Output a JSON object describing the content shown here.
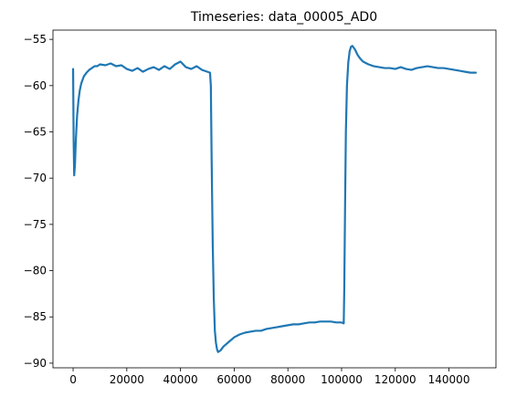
{
  "chart_data": {
    "type": "line",
    "title": "Timeseries: data_00005_AD0",
    "xlabel": "",
    "ylabel": "",
    "xlim": [
      -7500,
      157500
    ],
    "ylim": [
      -90.5,
      -54.0
    ],
    "x_ticks": [
      0,
      20000,
      40000,
      60000,
      80000,
      100000,
      120000,
      140000
    ],
    "x_tick_labels": [
      "0",
      "20000",
      "40000",
      "60000",
      "80000",
      "100000",
      "120000",
      "140000"
    ],
    "y_ticks": [
      -55,
      -60,
      -65,
      -70,
      -75,
      -80,
      -85,
      -90
    ],
    "y_tick_labels": [
      "−55",
      "−60",
      "−65",
      "−70",
      "−75",
      "−80",
      "−85",
      "−90"
    ],
    "grid": false,
    "line_color": "#1f77b4",
    "series": [
      {
        "x": [
          0,
          200,
          400,
          700,
          1000,
          1500,
          2000,
          2500,
          3000,
          4000,
          5000,
          6000,
          7000,
          8000,
          9000,
          10000,
          12000,
          14000,
          16000,
          18000,
          20000,
          22000,
          24000,
          26000,
          28000,
          30000,
          32000,
          34000,
          36000,
          38000,
          40000,
          42000,
          44000,
          46000,
          48000,
          50000,
          51000,
          51300,
          51600,
          52000,
          52400,
          52800,
          53200,
          53600,
          54000,
          55000,
          56000,
          58000,
          60000,
          62000,
          64000,
          66000,
          68000,
          70000,
          72000,
          74000,
          76000,
          78000,
          80000,
          82000,
          84000,
          86000,
          88000,
          90000,
          92000,
          94000,
          96000,
          98000,
          100000,
          100800,
          101000,
          101300,
          101600,
          102000,
          102500,
          103000,
          103500,
          104000,
          105000,
          106000,
          107000,
          108000,
          110000,
          112000,
          114000,
          116000,
          118000,
          120000,
          122000,
          124000,
          126000,
          128000,
          130000,
          132000,
          134000,
          136000,
          138000,
          140000,
          142000,
          144000,
          146000,
          148000,
          150000
        ],
        "y": [
          -58.2,
          -66.0,
          -69.7,
          -68.5,
          -66.0,
          -63.2,
          -61.6,
          -60.5,
          -59.8,
          -59.0,
          -58.6,
          -58.3,
          -58.1,
          -57.9,
          -57.9,
          -57.7,
          -57.8,
          -57.6,
          -57.9,
          -57.8,
          -58.2,
          -58.4,
          -58.1,
          -58.5,
          -58.2,
          -58.0,
          -58.3,
          -57.9,
          -58.2,
          -57.7,
          -57.4,
          -58.0,
          -58.2,
          -57.9,
          -58.3,
          -58.5,
          -58.6,
          -60.0,
          -68.0,
          -77.0,
          -83.0,
          -86.5,
          -87.8,
          -88.5,
          -88.8,
          -88.6,
          -88.2,
          -87.7,
          -87.2,
          -86.9,
          -86.7,
          -86.6,
          -86.5,
          -86.5,
          -86.3,
          -86.2,
          -86.1,
          -86.0,
          -85.9,
          -85.8,
          -85.8,
          -85.7,
          -85.6,
          -85.6,
          -85.5,
          -85.5,
          -85.5,
          -85.6,
          -85.6,
          -85.7,
          -82.0,
          -73.0,
          -65.0,
          -60.0,
          -57.5,
          -56.3,
          -55.8,
          -55.7,
          -56.1,
          -56.7,
          -57.1,
          -57.4,
          -57.7,
          -57.9,
          -58.0,
          -58.1,
          -58.1,
          -58.2,
          -58.0,
          -58.2,
          -58.3,
          -58.1,
          -58.0,
          -57.9,
          -58.0,
          -58.1,
          -58.1,
          -58.2,
          -58.3,
          -58.4,
          -58.5,
          -58.6,
          -58.6
        ]
      }
    ]
  }
}
